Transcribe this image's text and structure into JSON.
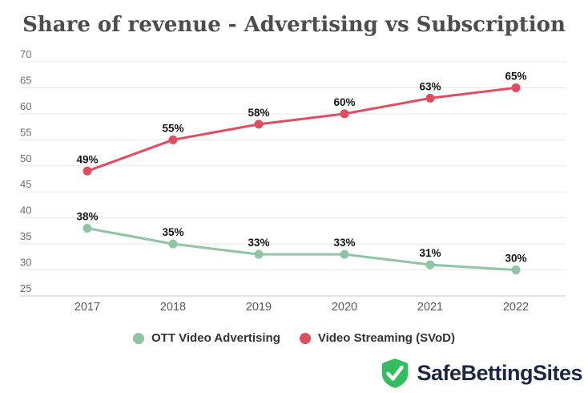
{
  "title": "Share of revenue - Advertising vs Subscription",
  "chart_data": {
    "type": "line",
    "x": [
      "2017",
      "2018",
      "2019",
      "2020",
      "2021",
      "2022"
    ],
    "series": [
      {
        "name": "OTT Video Advertising",
        "color": "#8fc5a3",
        "values": [
          38,
          35,
          33,
          33,
          31,
          30
        ],
        "point_labels": [
          "38%",
          "35%",
          "33%",
          "33%",
          "31%",
          "30%"
        ]
      },
      {
        "name": "Video Streaming (SVoD)",
        "color": "#df4e5e",
        "values": [
          49,
          55,
          58,
          60,
          63,
          65
        ],
        "point_labels": [
          "49%",
          "55%",
          "58%",
          "60%",
          "63%",
          "65%"
        ]
      }
    ],
    "ylim": [
      25,
      70
    ],
    "yticks": [
      70,
      65,
      60,
      55,
      50,
      45,
      40,
      35,
      30,
      25
    ],
    "grid": "horizontal",
    "legend_position": "bottom",
    "xlabel": "",
    "ylabel": ""
  },
  "legend": {
    "items": [
      {
        "label": "OTT Video Advertising",
        "color": "#8fc5a3"
      },
      {
        "label": "Video Streaming (SVoD)",
        "color": "#df4e5e"
      }
    ]
  },
  "branding": {
    "name": "SafeBettingSites",
    "icon": "shield-check-icon",
    "icon_color": "#34bd60",
    "text_color": "#1c2742"
  },
  "colors": {
    "background": "#ffffff",
    "title": "#4d4d4d",
    "grid": "#e7e7e7",
    "axis_baseline": "#c6c6c6",
    "tick_label": "#6d6d6d",
    "value_label": "#141414",
    "x_label": "#595959"
  }
}
